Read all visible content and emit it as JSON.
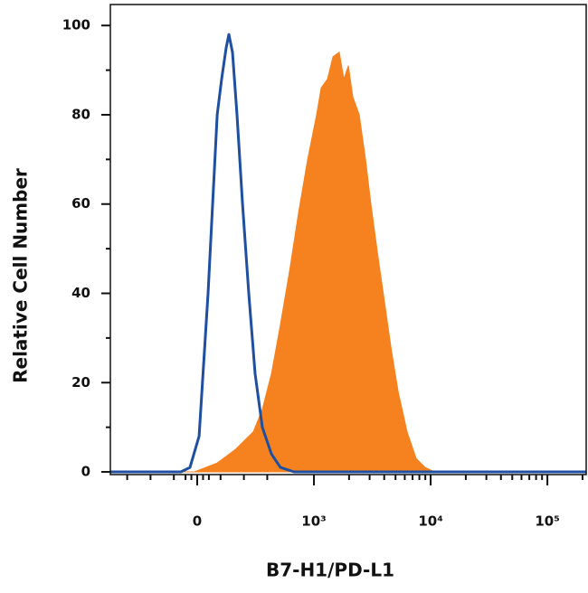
{
  "chart_data": {
    "type": "histogram-overlay",
    "x_label": "B7-H1/PD-L1",
    "y_label": "Relative Cell Number",
    "xscale": "biexponential",
    "xlinthresh": 1000,
    "xlim": [
      -744,
      215000
    ],
    "xticks": [
      {
        "value": 0,
        "label": "0"
      },
      {
        "value": 1000,
        "label": "10³"
      },
      {
        "value": 10000,
        "label": "10⁴"
      },
      {
        "value": 100000,
        "label": "10⁵"
      }
    ],
    "xminorticks": [
      -600,
      -400,
      -200,
      -100,
      -50,
      50,
      100,
      200,
      400,
      600,
      2000,
      3000,
      4000,
      5000,
      6000,
      7000,
      8000,
      9000,
      20000,
      30000,
      40000,
      50000,
      60000,
      70000,
      80000,
      90000,
      200000
    ],
    "ylim": [
      -0.6,
      104.7
    ],
    "yticks": [
      0,
      20,
      40,
      60,
      80,
      100
    ],
    "yminorticks": [
      10,
      30,
      50,
      70,
      90
    ],
    "series": [
      {
        "color": "#f5821f",
        "fill": true,
        "x": [
          -744,
          -23,
          171,
          326,
          481,
          558,
          636,
          713,
          791,
          868,
          946,
          1055,
          1153,
          1306,
          1455,
          1648,
          1803,
          1972,
          2153,
          2443,
          2767,
          3076,
          3548,
          4026,
          4560,
          5260,
          6285,
          7510,
          8970,
          10740,
          215000
        ],
        "values": [
          0,
          0,
          2,
          5,
          9,
          14,
          22,
          33,
          45,
          58,
          70,
          80,
          86,
          88,
          93,
          94,
          88,
          91,
          84,
          80,
          70,
          60,
          48,
          38,
          28,
          18,
          9,
          3,
          1,
          0,
          0
        ]
      },
      {
        "color": "#1f4fa0",
        "fill": false,
        "x": [
          -744,
          -140,
          -62,
          16,
          93,
          171,
          209,
          248,
          271,
          302,
          341,
          388,
          442,
          496,
          558,
          636,
          713,
          829,
          215000
        ],
        "values": [
          0,
          0,
          1,
          8,
          40,
          80,
          88,
          95,
          98,
          94,
          80,
          60,
          40,
          22,
          10,
          4,
          1,
          0,
          0
        ]
      }
    ]
  }
}
